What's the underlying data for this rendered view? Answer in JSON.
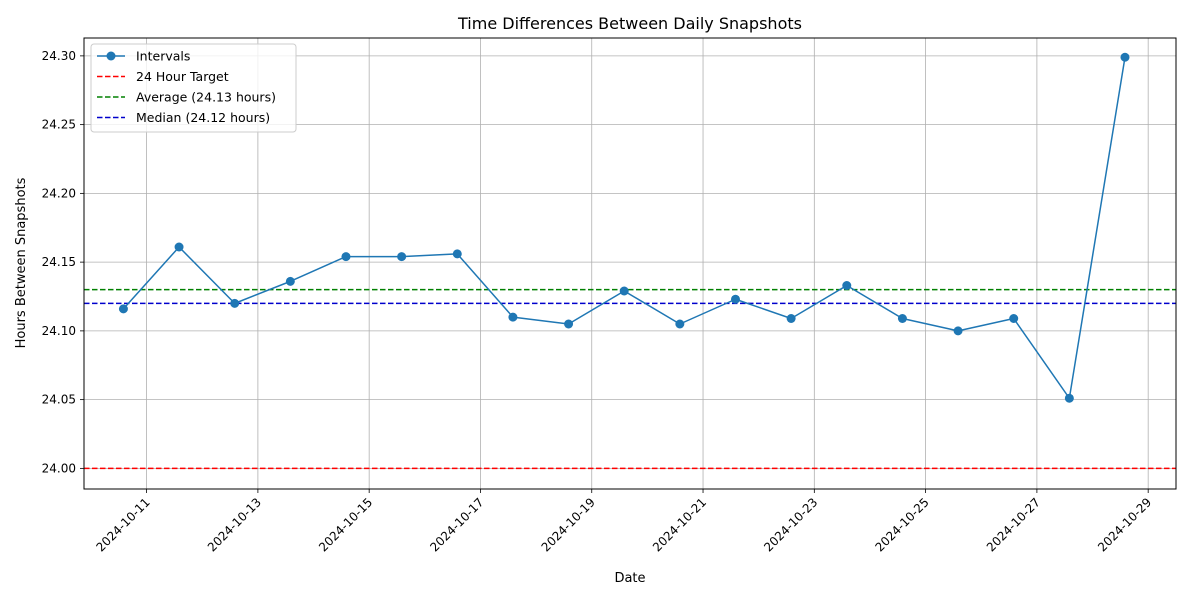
{
  "chart_data": {
    "type": "line",
    "title": "Time Differences Between Daily Snapshots",
    "xlabel": "Date",
    "ylabel": "Hours Between Snapshots",
    "x_tick_labels": [
      "2024-10-11",
      "2024-10-13",
      "2024-10-15",
      "2024-10-17",
      "2024-10-19",
      "2024-10-21",
      "2024-10-23",
      "2024-10-25",
      "2024-10-27",
      "2024-10-29"
    ],
    "y_tick_labels": [
      "24.00",
      "24.05",
      "24.10",
      "24.15",
      "24.20",
      "24.25",
      "24.30"
    ],
    "xlim": [
      "2024-10-09T21:00",
      "2024-10-29T12:00"
    ],
    "ylim": [
      23.985,
      24.313
    ],
    "grid": true,
    "legend_position": "upper-left",
    "series": [
      {
        "name": "Intervals",
        "color": "#1f77b4",
        "style": "line-marker",
        "x": [
          "2024-10-10T14:00",
          "2024-10-11T14:00",
          "2024-10-12T14:00",
          "2024-10-13T14:00",
          "2024-10-14T14:00",
          "2024-10-15T14:00",
          "2024-10-16T14:00",
          "2024-10-17T14:00",
          "2024-10-18T14:00",
          "2024-10-19T14:00",
          "2024-10-20T14:00",
          "2024-10-21T14:00",
          "2024-10-22T14:00",
          "2024-10-23T14:00",
          "2024-10-24T14:00",
          "2024-10-25T14:00",
          "2024-10-26T14:00",
          "2024-10-27T14:00",
          "2024-10-28T14:00"
        ],
        "y": [
          24.116,
          24.161,
          24.12,
          24.136,
          24.154,
          24.154,
          24.156,
          24.11,
          24.105,
          24.129,
          24.105,
          24.123,
          24.109,
          24.133,
          24.109,
          24.1,
          24.109,
          24.051,
          24.299
        ]
      }
    ],
    "reference_lines": [
      {
        "name": "24 Hour Target",
        "y": 24.0,
        "color": "#ff0000",
        "style": "dashed"
      },
      {
        "name": "Average (24.13 hours)",
        "y": 24.13,
        "color": "#008000",
        "style": "dashed"
      },
      {
        "name": "Median (24.12 hours)",
        "y": 24.12,
        "color": "#0000cc",
        "style": "dashed"
      }
    ]
  }
}
